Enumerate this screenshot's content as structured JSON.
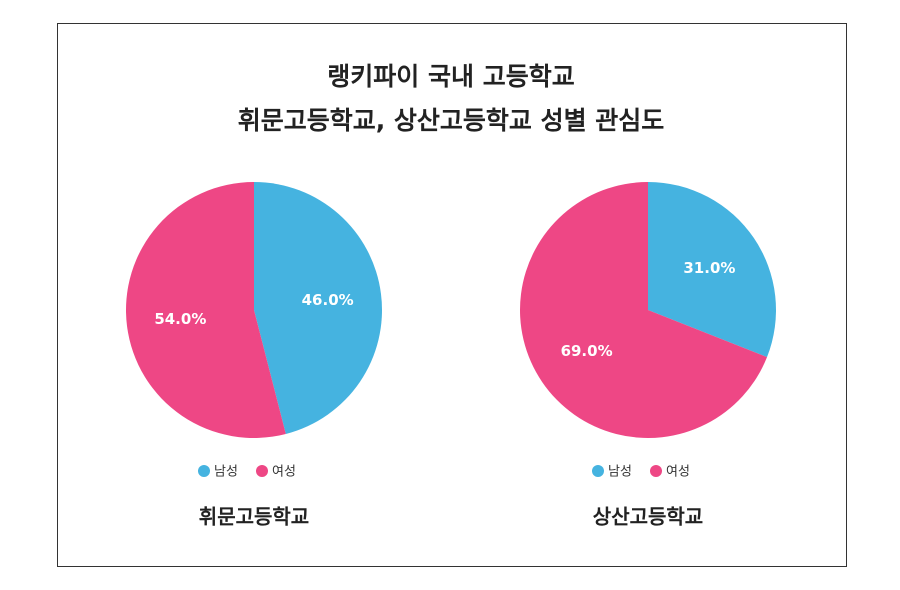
{
  "header": {
    "title_lines": [
      "랭키파이 국내 고등학교",
      "휘문고등학교, 상산고등학교 성별 관심도"
    ]
  },
  "chart_data": [
    {
      "type": "pie",
      "title": "휘문고등학교",
      "categories": [
        "남성",
        "여성"
      ],
      "values": [
        46,
        54
      ],
      "value_labels": [
        "46.0%",
        "54.0%"
      ],
      "colors": [
        "#45b3e0",
        "#ee4785"
      ]
    },
    {
      "type": "pie",
      "title": "상산고등학교",
      "categories": [
        "남성",
        "여성"
      ],
      "values": [
        31,
        69
      ],
      "value_labels": [
        "31.0%",
        "69.0%"
      ],
      "colors": [
        "#45b3e0",
        "#ee4785"
      ]
    }
  ]
}
